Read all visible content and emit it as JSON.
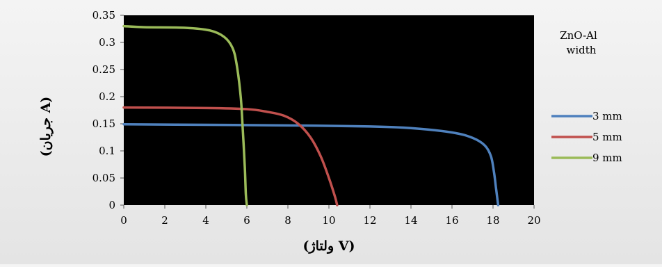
{
  "chart_data": {
    "type": "line",
    "title": "",
    "xlabel": "(ولتاژ V)",
    "ylabel": "(جریان A)",
    "xlim": [
      0,
      20
    ],
    "ylim": [
      0,
      0.35
    ],
    "x_ticks": [
      0,
      2,
      4,
      6,
      8,
      10,
      12,
      14,
      16,
      18,
      20
    ],
    "y_ticks": [
      0,
      0.05,
      0.1,
      0.15,
      0.2,
      0.25,
      0.3,
      0.35
    ],
    "y_tick_labels": [
      "0",
      "0.05",
      "0.1",
      "0.15",
      "0.2",
      "0.25",
      "0.3",
      "0.35"
    ],
    "grid": false,
    "plot_background": "#000000",
    "legend": {
      "title_line1": "ZnO-Al",
      "title_line2": "width",
      "placement": "right"
    },
    "series": [
      {
        "name": "3 mm",
        "color": "#4f81bd",
        "points": [
          [
            0,
            0.149
          ],
          [
            4,
            0.148
          ],
          [
            8,
            0.147
          ],
          [
            12,
            0.145
          ],
          [
            14,
            0.142
          ],
          [
            16,
            0.134
          ],
          [
            17,
            0.124
          ],
          [
            17.6,
            0.11
          ],
          [
            17.9,
            0.09
          ],
          [
            18.05,
            0.06
          ],
          [
            18.15,
            0.03
          ],
          [
            18.25,
            0
          ]
        ]
      },
      {
        "name": "5 mm",
        "color": "#c0504d",
        "points": [
          [
            0,
            0.18
          ],
          [
            4,
            0.179
          ],
          [
            6,
            0.177
          ],
          [
            7,
            0.172
          ],
          [
            7.8,
            0.165
          ],
          [
            8.5,
            0.15
          ],
          [
            9.1,
            0.125
          ],
          [
            9.6,
            0.09
          ],
          [
            10,
            0.05
          ],
          [
            10.3,
            0.015
          ],
          [
            10.4,
            0
          ]
        ]
      },
      {
        "name": "9 mm",
        "color": "#9bbb59",
        "points": [
          [
            0,
            0.33
          ],
          [
            1,
            0.328
          ],
          [
            3,
            0.327
          ],
          [
            4.2,
            0.322
          ],
          [
            4.9,
            0.31
          ],
          [
            5.3,
            0.29
          ],
          [
            5.5,
            0.26
          ],
          [
            5.7,
            0.2
          ],
          [
            5.8,
            0.14
          ],
          [
            5.9,
            0.07
          ],
          [
            5.95,
            0.02
          ],
          [
            6,
            0
          ]
        ]
      }
    ]
  }
}
